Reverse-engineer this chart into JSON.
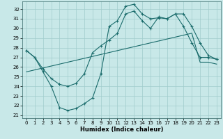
{
  "xlabel": "Humidex (Indice chaleur)",
  "bg_color": "#c8e8e8",
  "grid_color": "#a0cccc",
  "line_color": "#1a6b6b",
  "xlim": [
    -0.5,
    23.5
  ],
  "ylim": [
    20.7,
    32.8
  ],
  "yticks": [
    21,
    22,
    23,
    24,
    25,
    26,
    27,
    28,
    29,
    30,
    31,
    32
  ],
  "xticks": [
    0,
    1,
    2,
    3,
    4,
    5,
    6,
    7,
    8,
    9,
    10,
    11,
    12,
    13,
    14,
    15,
    16,
    17,
    18,
    19,
    20,
    21,
    22,
    23
  ],
  "line1_x": [
    0,
    1,
    2,
    3,
    4,
    5,
    6,
    7,
    8,
    9,
    10,
    11,
    12,
    13,
    14,
    15,
    16,
    17,
    18,
    19,
    20,
    21,
    22,
    23
  ],
  "line1_y": [
    27.7,
    27.0,
    25.5,
    24.0,
    21.8,
    21.5,
    21.7,
    22.2,
    22.8,
    25.3,
    30.2,
    30.8,
    32.3,
    32.5,
    31.5,
    31.0,
    31.1,
    31.0,
    31.5,
    30.2,
    28.5,
    27.0,
    27.0,
    26.8
  ],
  "line2_x": [
    0,
    1,
    2,
    3,
    4,
    5,
    6,
    7,
    8,
    9,
    10,
    11,
    12,
    13,
    14,
    15,
    16,
    17,
    18,
    19,
    20,
    21,
    22,
    23
  ],
  "line2_y": [
    27.7,
    27.0,
    25.8,
    24.8,
    24.2,
    24.0,
    24.3,
    25.3,
    27.5,
    28.2,
    28.8,
    29.5,
    31.5,
    31.8,
    30.8,
    30.0,
    31.2,
    31.0,
    31.5,
    31.5,
    30.2,
    28.5,
    27.2,
    26.8
  ],
  "line3_x": [
    0,
    1,
    2,
    3,
    4,
    5,
    6,
    7,
    8,
    9,
    10,
    11,
    12,
    13,
    14,
    15,
    16,
    17,
    18,
    19,
    20,
    21,
    22,
    23
  ],
  "line3_y": [
    25.5,
    25.7,
    25.9,
    26.1,
    26.3,
    26.5,
    26.7,
    26.9,
    27.1,
    27.3,
    27.5,
    27.7,
    27.9,
    28.1,
    28.3,
    28.5,
    28.7,
    28.9,
    29.1,
    29.3,
    29.5,
    26.5,
    26.5,
    26.3
  ]
}
